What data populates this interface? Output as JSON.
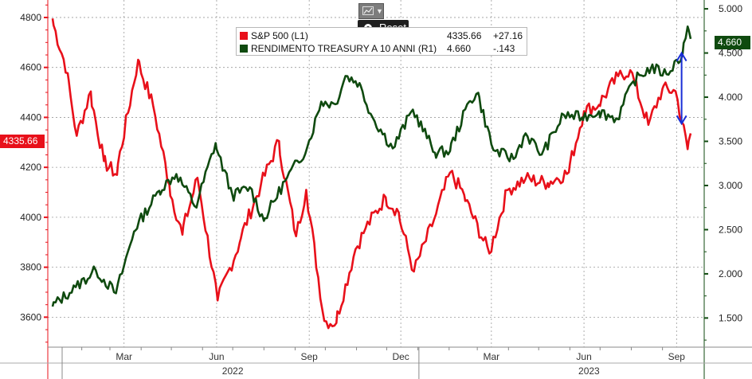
{
  "toolbar": {
    "chart_icon": "line-chart-icon",
    "caret_icon": "chevron-down-icon",
    "reset_label": "Reset"
  },
  "legend": [
    {
      "name": "S&P 500 (L1)",
      "value": "4335.66",
      "change": "+27.16",
      "color": "#e8101a"
    },
    {
      "name": "RENDIMENTO TREASURY A 10 ANNI (R1)",
      "value": "4.660",
      "change": "-.143",
      "color": "#0f4a0f"
    }
  ],
  "badges": {
    "left": "4335.66",
    "right": "4.660"
  },
  "colors": {
    "sp500": "#e8101a",
    "treasury": "#0f4a0f",
    "arrow": "#1a2fd6"
  },
  "chart_data": {
    "type": "line",
    "x_range": [
      "2022-01-03",
      "2023-09-29"
    ],
    "x_month_labels": [
      "Mar",
      "Jun",
      "Sep",
      "Dec",
      "Mar",
      "Jun",
      "Sep"
    ],
    "x_year_labels": [
      "2022",
      "2023"
    ],
    "y_left": {
      "ylim": [
        3480,
        4870
      ],
      "ticks": [
        "3600",
        "3800",
        "4000",
        "4200",
        "4400",
        "4600",
        "4800"
      ]
    },
    "y_right": {
      "ylim": [
        1.17,
        5.1
      ],
      "ticks": [
        "1.500",
        "2.000",
        "2.500",
        "3.000",
        "3.500",
        "4.000",
        "4.500",
        "5.000"
      ]
    },
    "grid": true,
    "series": [
      {
        "name": "S&P 500 (L1)",
        "axis": "left",
        "x": [
          "2022-01-03",
          "2022-01-18",
          "2022-01-27",
          "2022-02-10",
          "2022-02-23",
          "2022-03-08",
          "2022-03-29",
          "2022-04-13",
          "2022-04-29",
          "2022-05-12",
          "2022-05-27",
          "2022-06-16",
          "2022-07-08",
          "2022-07-29",
          "2022-08-16",
          "2022-09-02",
          "2022-09-12",
          "2022-09-30",
          "2022-10-12",
          "2022-10-31",
          "2022-11-10",
          "2022-11-30",
          "2022-12-13",
          "2022-12-28",
          "2023-01-17",
          "2023-02-02",
          "2023-02-16",
          "2023-03-13",
          "2023-03-31",
          "2023-04-18",
          "2023-05-10",
          "2023-05-31",
          "2023-06-15",
          "2023-06-30",
          "2023-07-19",
          "2023-07-31",
          "2023-08-18",
          "2023-09-01",
          "2023-09-14",
          "2023-09-26",
          "2023-09-29"
        ],
        "values": [
          4796,
          4577,
          4326,
          4504,
          4225,
          4170,
          4631,
          4446,
          4131,
          3930,
          4158,
          3667,
          3900,
          4130,
          4305,
          3924,
          4110,
          3585,
          3577,
          3872,
          3956,
          4080,
          4019,
          3783,
          3990,
          4179,
          4090,
          3855,
          4109,
          4154,
          4137,
          4180,
          4425,
          4450,
          4565,
          4589,
          4370,
          4515,
          4505,
          4273,
          4336
        ]
      },
      {
        "name": "RENDIMENTO TREASURY A 10 ANNI (R1)",
        "axis": "right",
        "x": [
          "2022-01-03",
          "2022-01-26",
          "2022-02-15",
          "2022-03-07",
          "2022-03-25",
          "2022-04-19",
          "2022-05-06",
          "2022-05-26",
          "2022-06-14",
          "2022-07-01",
          "2022-07-18",
          "2022-08-01",
          "2022-08-22",
          "2022-09-13",
          "2022-09-27",
          "2022-10-11",
          "2022-10-21",
          "2022-11-04",
          "2022-11-17",
          "2022-12-07",
          "2022-12-27",
          "2023-01-18",
          "2023-02-02",
          "2023-02-21",
          "2023-03-02",
          "2023-03-17",
          "2023-04-06",
          "2023-04-18",
          "2023-05-04",
          "2023-05-26",
          "2023-06-13",
          "2023-06-30",
          "2023-07-19",
          "2023-08-03",
          "2023-08-21",
          "2023-09-05",
          "2023-09-21",
          "2023-09-26",
          "2023-09-29"
        ],
        "values": [
          1.63,
          1.85,
          2.04,
          1.78,
          2.48,
          2.94,
          3.13,
          2.75,
          3.48,
          2.88,
          2.98,
          2.6,
          3.05,
          3.43,
          3.95,
          3.92,
          4.24,
          4.16,
          3.77,
          3.42,
          3.86,
          3.37,
          3.39,
          3.95,
          4.05,
          3.4,
          3.3,
          3.59,
          3.35,
          3.8,
          3.77,
          3.84,
          3.75,
          4.18,
          4.34,
          4.26,
          4.49,
          4.8,
          4.66
        ]
      }
    ],
    "annotation": {
      "type": "double-arrow",
      "x": "2023-09-20",
      "y_from": 4.5,
      "y_to": 3.7,
      "axis": "right"
    }
  }
}
